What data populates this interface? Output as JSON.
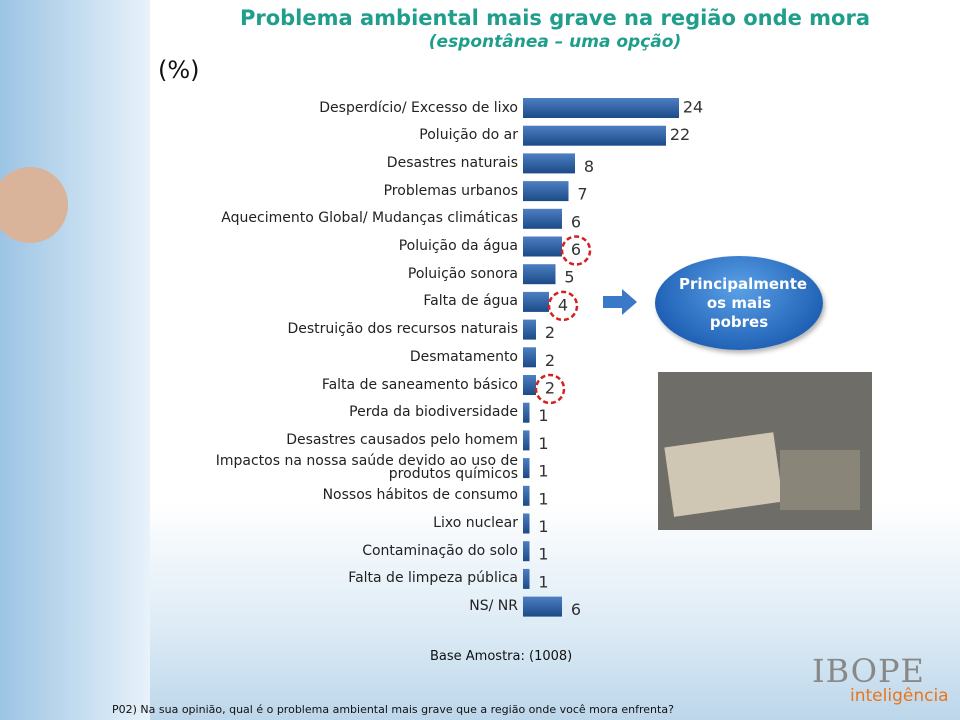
{
  "chart_data": {
    "type": "bar",
    "orientation": "horizontal",
    "title": "Problema ambiental mais grave na região onde mora",
    "subtitle": "(espontânea – uma opção)",
    "unit_label": "(%)",
    "categories": [
      "Desperdício/ Excesso de lixo",
      "Poluição do ar",
      "Desastres naturais",
      "Problemas urbanos",
      "Aquecimento Global/ Mudanças climáticas",
      "Poluição da água",
      "Poluição sonora",
      "Falta de água",
      "Destruição dos recursos naturais",
      "Desmatamento",
      "Falta de saneamento básico",
      "Perda da biodiversidade",
      "Desastres causados pelo homem",
      "Impactos na nossa saúde devido ao uso de produtos químicos",
      "Nossos hábitos de consumo",
      "Lixo nuclear",
      "Contaminação do solo",
      "Falta de limpeza pública",
      "NS/ NR"
    ],
    "values": [
      24,
      22,
      8,
      7,
      6,
      6,
      5,
      4,
      2,
      2,
      2,
      1,
      1,
      1,
      1,
      1,
      1,
      1,
      6
    ],
    "color": "#2a5a9a",
    "highlight_indices": [
      5,
      7,
      10
    ],
    "callout": "Principalmente os mais pobres",
    "base_note": "Base Amostra: (1008)",
    "question": "P02) Na sua opinião, qual é o problema ambiental mais grave que a região onde você mora enfrenta?",
    "brand": "IBOPE",
    "brand_sub": "inteligência"
  }
}
